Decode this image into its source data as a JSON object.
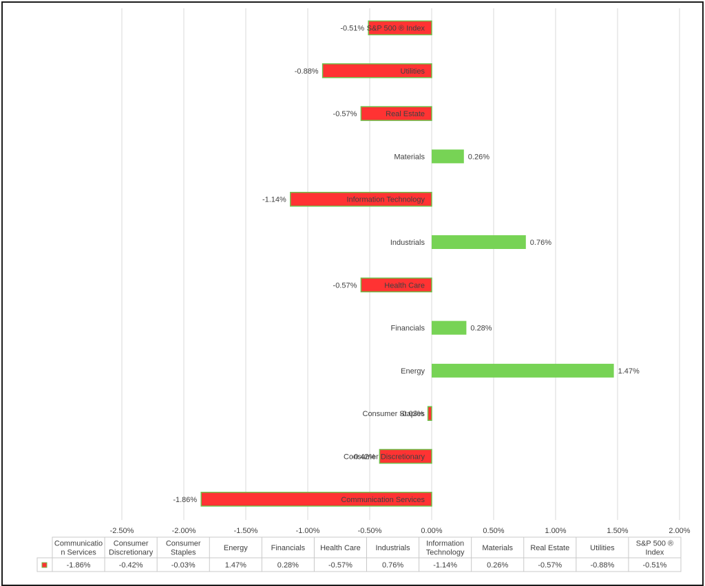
{
  "chart_data": {
    "type": "bar",
    "orientation": "horizontal",
    "categories": [
      "Communication Services",
      "Consumer Discretionary",
      "Consumer Staples",
      "Energy",
      "Financials",
      "Health Care",
      "Industrials",
      "Information Technology",
      "Materials",
      "Real Estate",
      "Utilities",
      "S&P 500 ® Index"
    ],
    "values": [
      -1.86,
      -0.42,
      -0.03,
      1.47,
      0.28,
      -0.57,
      0.76,
      -1.14,
      0.26,
      -0.57,
      -0.88,
      -0.51
    ],
    "value_labels": [
      "-1.86%",
      "-0.42%",
      "-0.03%",
      "1.47%",
      "0.28%",
      "-0.57%",
      "0.76%",
      "-1.14%",
      "0.26%",
      "-0.57%",
      "-0.88%",
      "-0.51%"
    ],
    "xlim": [
      -2.5,
      2.0
    ],
    "x_ticks": [
      -2.5,
      -2.0,
      -1.5,
      -1.0,
      -0.5,
      0.0,
      0.5,
      1.0,
      1.5,
      2.0
    ],
    "x_tick_labels": [
      "-2.50%",
      "-2.00%",
      "-1.50%",
      "-1.00%",
      "-0.50%",
      "0.00%",
      "0.50%",
      "1.00%",
      "1.50%",
      "2.00%"
    ],
    "grid": true,
    "title": "",
    "xlabel": "",
    "ylabel": "",
    "colors": {
      "positive": "#77d355",
      "negative": "#ff3333",
      "bar_border": "#6fbf4a",
      "gridline": "#d9d9d9",
      "text": "#404040",
      "table_border": "#c8c8c8",
      "frame": "#1a1a1a"
    },
    "data_table": {
      "headers": [
        [
          "Communicatio",
          "n Services"
        ],
        [
          "Consumer",
          "Discretionary"
        ],
        [
          "Consumer",
          "Staples"
        ],
        [
          "Energy"
        ],
        [
          "Financials"
        ],
        [
          "Health Care"
        ],
        [
          "Industrials"
        ],
        [
          "Information",
          "Technology"
        ],
        [
          "Materials"
        ],
        [
          "Real Estate"
        ],
        [
          "Utilities"
        ],
        [
          "S&P 500 ®",
          "Index"
        ]
      ],
      "values": [
        "-1.86%",
        "-0.42%",
        "-0.03%",
        "1.47%",
        "0.28%",
        "-0.57%",
        "0.76%",
        "-1.14%",
        "0.26%",
        "-0.57%",
        "-0.88%",
        "-0.51%"
      ]
    }
  }
}
